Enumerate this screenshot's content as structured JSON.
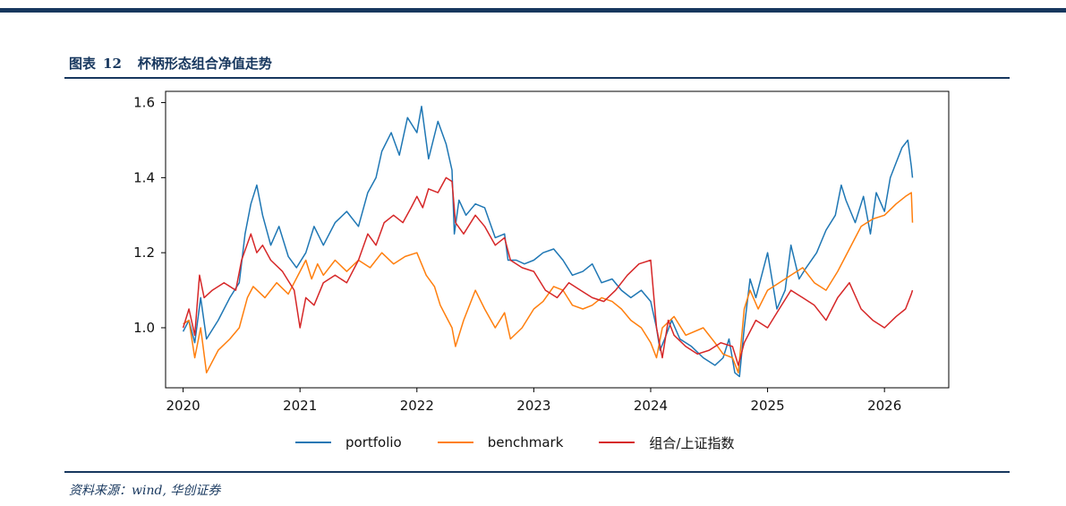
{
  "caption": {
    "label": "图表",
    "number": "12",
    "title": "杯柄形态组合净值走势"
  },
  "source": "资料来源：wind, 华创证券",
  "colors": {
    "accent": "#17375e",
    "portfolio": "#1f77b4",
    "benchmark": "#ff7f0e",
    "index": "#d62728"
  },
  "chart_data": {
    "type": "line",
    "title": "",
    "xlabel": "",
    "ylabel": "",
    "xlim": [
      2019.85,
      2026.55
    ],
    "ylim": [
      0.84,
      1.63
    ],
    "xticks": [
      2020,
      2021,
      2022,
      2023,
      2024,
      2025,
      2026
    ],
    "xtick_labels": [
      "2020",
      "2021",
      "2022",
      "2023",
      "2024",
      "2025",
      "2026"
    ],
    "yticks": [
      1.0,
      1.2,
      1.4,
      1.6
    ],
    "ytick_labels": [
      "1.0",
      "1.2",
      "1.4",
      "1.6"
    ],
    "grid": false,
    "legend_position": "bottom",
    "series": [
      {
        "name": "portfolio",
        "color": "#1f77b4",
        "x": [
          2020.0,
          2020.05,
          2020.1,
          2020.15,
          2020.2,
          2020.3,
          2020.4,
          2020.48,
          2020.53,
          2020.58,
          2020.63,
          2020.68,
          2020.75,
          2020.82,
          2020.9,
          2020.97,
          2021.05,
          2021.12,
          2021.2,
          2021.3,
          2021.4,
          2021.5,
          2021.58,
          2021.65,
          2021.7,
          2021.78,
          2021.85,
          2021.92,
          2022.0,
          2022.04,
          2022.1,
          2022.18,
          2022.25,
          2022.3,
          2022.32,
          2022.36,
          2022.42,
          2022.5,
          2022.58,
          2022.67,
          2022.75,
          2022.78,
          2022.85,
          2022.92,
          2023.0,
          2023.08,
          2023.17,
          2023.25,
          2023.33,
          2023.42,
          2023.5,
          2023.58,
          2023.67,
          2023.75,
          2023.83,
          2023.92,
          2024.0,
          2024.05,
          2024.08,
          2024.12,
          2024.18,
          2024.25,
          2024.35,
          2024.45,
          2024.55,
          2024.62,
          2024.67,
          2024.72,
          2024.76,
          2024.8,
          2024.85,
          2024.9,
          2025.0,
          2025.08,
          2025.15,
          2025.2,
          2025.27,
          2025.33,
          2025.42,
          2025.5,
          2025.58,
          2025.63,
          2025.67,
          2025.75,
          2025.82,
          2025.88,
          2025.93,
          2026.0,
          2026.05,
          2026.1,
          2026.15,
          2026.2,
          2026.23,
          2026.24
        ],
        "y": [
          0.99,
          1.02,
          0.96,
          1.08,
          0.97,
          1.02,
          1.08,
          1.12,
          1.25,
          1.33,
          1.38,
          1.3,
          1.22,
          1.27,
          1.19,
          1.16,
          1.2,
          1.27,
          1.22,
          1.28,
          1.31,
          1.27,
          1.36,
          1.4,
          1.47,
          1.52,
          1.46,
          1.56,
          1.52,
          1.59,
          1.45,
          1.55,
          1.49,
          1.42,
          1.25,
          1.34,
          1.3,
          1.33,
          1.32,
          1.24,
          1.25,
          1.18,
          1.18,
          1.17,
          1.18,
          1.2,
          1.21,
          1.18,
          1.14,
          1.15,
          1.17,
          1.12,
          1.13,
          1.1,
          1.08,
          1.1,
          1.07,
          1.0,
          0.94,
          0.97,
          1.02,
          0.97,
          0.95,
          0.92,
          0.9,
          0.92,
          0.97,
          0.88,
          0.87,
          1.0,
          1.13,
          1.08,
          1.2,
          1.05,
          1.1,
          1.22,
          1.13,
          1.16,
          1.2,
          1.26,
          1.3,
          1.38,
          1.34,
          1.28,
          1.35,
          1.25,
          1.36,
          1.31,
          1.4,
          1.44,
          1.48,
          1.5,
          1.43,
          1.4
        ]
      },
      {
        "name": "benchmark",
        "color": "#ff7f0e",
        "x": [
          2020.0,
          2020.05,
          2020.1,
          2020.15,
          2020.2,
          2020.3,
          2020.4,
          2020.48,
          2020.55,
          2020.6,
          2020.7,
          2020.8,
          2020.9,
          2021.0,
          2021.05,
          2021.1,
          2021.15,
          2021.2,
          2021.3,
          2021.4,
          2021.5,
          2021.6,
          2021.7,
          2021.8,
          2021.9,
          2022.0,
          2022.08,
          2022.15,
          2022.2,
          2022.25,
          2022.3,
          2022.33,
          2022.4,
          2022.5,
          2022.58,
          2022.67,
          2022.75,
          2022.8,
          2022.9,
          2023.0,
          2023.08,
          2023.17,
          2023.25,
          2023.33,
          2023.42,
          2023.5,
          2023.58,
          2023.67,
          2023.75,
          2023.83,
          2023.92,
          2024.0,
          2024.05,
          2024.1,
          2024.2,
          2024.3,
          2024.45,
          2024.55,
          2024.62,
          2024.7,
          2024.75,
          2024.8,
          2024.85,
          2024.92,
          2025.0,
          2025.1,
          2025.2,
          2025.3,
          2025.4,
          2025.5,
          2025.6,
          2025.7,
          2025.8,
          2025.9,
          2026.0,
          2026.1,
          2026.18,
          2026.23,
          2026.24
        ],
        "y": [
          1.01,
          1.02,
          0.92,
          1.0,
          0.88,
          0.94,
          0.97,
          1.0,
          1.08,
          1.11,
          1.08,
          1.12,
          1.09,
          1.15,
          1.18,
          1.13,
          1.17,
          1.14,
          1.18,
          1.15,
          1.18,
          1.16,
          1.2,
          1.17,
          1.19,
          1.2,
          1.14,
          1.11,
          1.06,
          1.03,
          1.0,
          0.95,
          1.02,
          1.1,
          1.05,
          1.0,
          1.04,
          0.97,
          1.0,
          1.05,
          1.07,
          1.11,
          1.1,
          1.06,
          1.05,
          1.06,
          1.08,
          1.07,
          1.05,
          1.02,
          1.0,
          0.96,
          0.92,
          1.0,
          1.03,
          0.98,
          1.0,
          0.96,
          0.93,
          0.92,
          0.88,
          1.05,
          1.1,
          1.05,
          1.1,
          1.12,
          1.14,
          1.16,
          1.12,
          1.1,
          1.15,
          1.21,
          1.27,
          1.29,
          1.3,
          1.33,
          1.35,
          1.36,
          1.28
        ]
      },
      {
        "name": "组合/上证指数",
        "color": "#d62728",
        "x": [
          2020.0,
          2020.05,
          2020.1,
          2020.14,
          2020.18,
          2020.25,
          2020.35,
          2020.45,
          2020.5,
          2020.58,
          2020.63,
          2020.68,
          2020.75,
          2020.85,
          2020.95,
          2021.0,
          2021.05,
          2021.12,
          2021.2,
          2021.3,
          2021.4,
          2021.5,
          2021.58,
          2021.65,
          2021.72,
          2021.8,
          2021.88,
          2021.95,
          2022.0,
          2022.05,
          2022.1,
          2022.18,
          2022.25,
          2022.3,
          2022.33,
          2022.4,
          2022.5,
          2022.58,
          2022.67,
          2022.75,
          2022.8,
          2022.9,
          2023.0,
          2023.1,
          2023.2,
          2023.3,
          2023.4,
          2023.5,
          2023.6,
          2023.7,
          2023.8,
          2023.9,
          2024.0,
          2024.05,
          2024.1,
          2024.15,
          2024.2,
          2024.3,
          2024.4,
          2024.5,
          2024.6,
          2024.7,
          2024.75,
          2024.8,
          2024.9,
          2025.0,
          2025.1,
          2025.2,
          2025.3,
          2025.4,
          2025.5,
          2025.6,
          2025.7,
          2025.8,
          2025.9,
          2026.0,
          2026.1,
          2026.18,
          2026.23,
          2026.24
        ],
        "y": [
          1.0,
          1.05,
          0.98,
          1.14,
          1.08,
          1.1,
          1.12,
          1.1,
          1.18,
          1.25,
          1.2,
          1.22,
          1.18,
          1.15,
          1.1,
          1.0,
          1.08,
          1.06,
          1.12,
          1.14,
          1.12,
          1.18,
          1.25,
          1.22,
          1.28,
          1.3,
          1.28,
          1.32,
          1.35,
          1.32,
          1.37,
          1.36,
          1.4,
          1.39,
          1.28,
          1.25,
          1.3,
          1.27,
          1.22,
          1.24,
          1.18,
          1.16,
          1.15,
          1.1,
          1.08,
          1.12,
          1.1,
          1.08,
          1.07,
          1.1,
          1.14,
          1.17,
          1.18,
          1.0,
          0.92,
          1.02,
          0.98,
          0.95,
          0.93,
          0.94,
          0.96,
          0.95,
          0.9,
          0.96,
          1.02,
          1.0,
          1.05,
          1.1,
          1.08,
          1.06,
          1.02,
          1.08,
          1.12,
          1.05,
          1.02,
          1.0,
          1.03,
          1.05,
          1.09,
          1.1
        ]
      }
    ]
  }
}
